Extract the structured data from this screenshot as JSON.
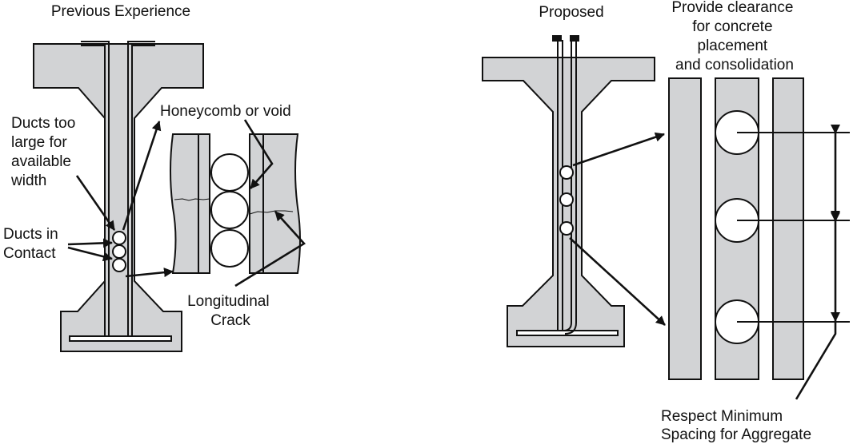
{
  "left_panel": {
    "title": "Previous Experience",
    "label_ducts_large": [
      "Ducts too",
      "large for",
      "available",
      "width"
    ],
    "label_ducts_contact": [
      "Ducts in",
      "Contact"
    ],
    "label_honeycomb": "Honeycomb or void",
    "label_crack": [
      "Longitudinal",
      "Crack"
    ]
  },
  "right_panel": {
    "title": "Proposed",
    "label_clearance": [
      "Provide clearance",
      "for concrete",
      "placement",
      "and consolidation"
    ],
    "label_spacing": [
      "Respect Minimum",
      "Spacing for Aggregate"
    ]
  },
  "colors": {
    "concrete": "#d2d3d5",
    "line": "#111111",
    "duct": "#ffffff"
  }
}
